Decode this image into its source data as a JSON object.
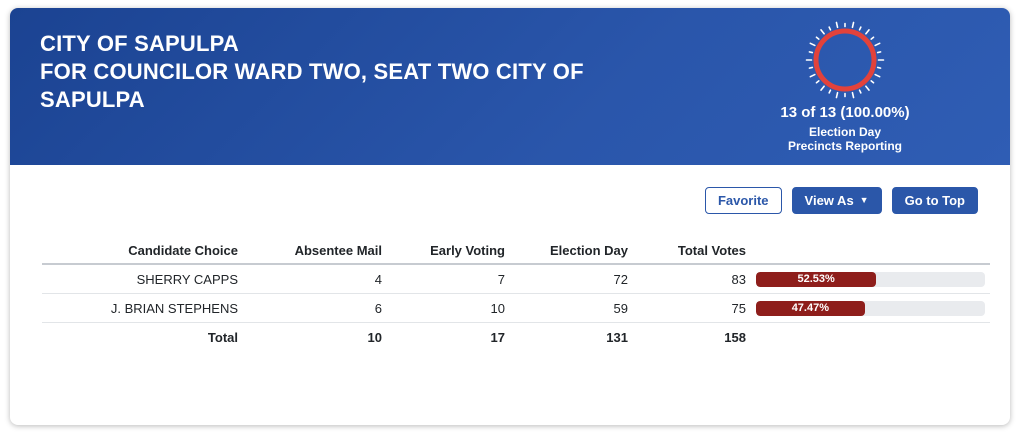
{
  "header": {
    "title_line1": "CITY OF SAPULPA",
    "title_line2": "FOR COUNCILOR WARD TWO, SEAT TWO CITY OF SAPULPA",
    "precincts": {
      "summary": "13 of 13 (100.00%)",
      "sub_line1": "Election Day",
      "sub_line2": "Precincts Reporting",
      "percent_reporting": 100
    }
  },
  "toolbar": {
    "favorite_label": "Favorite",
    "view_as_label": "View As",
    "go_to_top_label": "Go to Top"
  },
  "table": {
    "columns": [
      "Candidate Choice",
      "Absentee Mail",
      "Early Voting",
      "Election Day",
      "Total Votes"
    ],
    "rows": [
      {
        "candidate": "SHERRY CAPPS",
        "absentee_mail": "4",
        "early_voting": "7",
        "election_day": "72",
        "total_votes": "83",
        "percent": "52.53%",
        "percent_value": 52.53
      },
      {
        "candidate": "J. BRIAN STEPHENS",
        "absentee_mail": "6",
        "early_voting": "10",
        "election_day": "59",
        "total_votes": "75",
        "percent": "47.47%",
        "percent_value": 47.47
      }
    ],
    "total_row": {
      "label": "Total",
      "absentee_mail": "10",
      "early_voting": "17",
      "election_day": "131",
      "total_votes": "158"
    }
  },
  "colors": {
    "header_gradient_start": "#1b4392",
    "header_gradient_end": "#2f5db4",
    "accent_blue": "#2b57a9",
    "gauge_ring_red": "#e2423b",
    "bar_fill_maroon": "#8e1e1b",
    "bar_track_gray": "#e9ebee"
  }
}
